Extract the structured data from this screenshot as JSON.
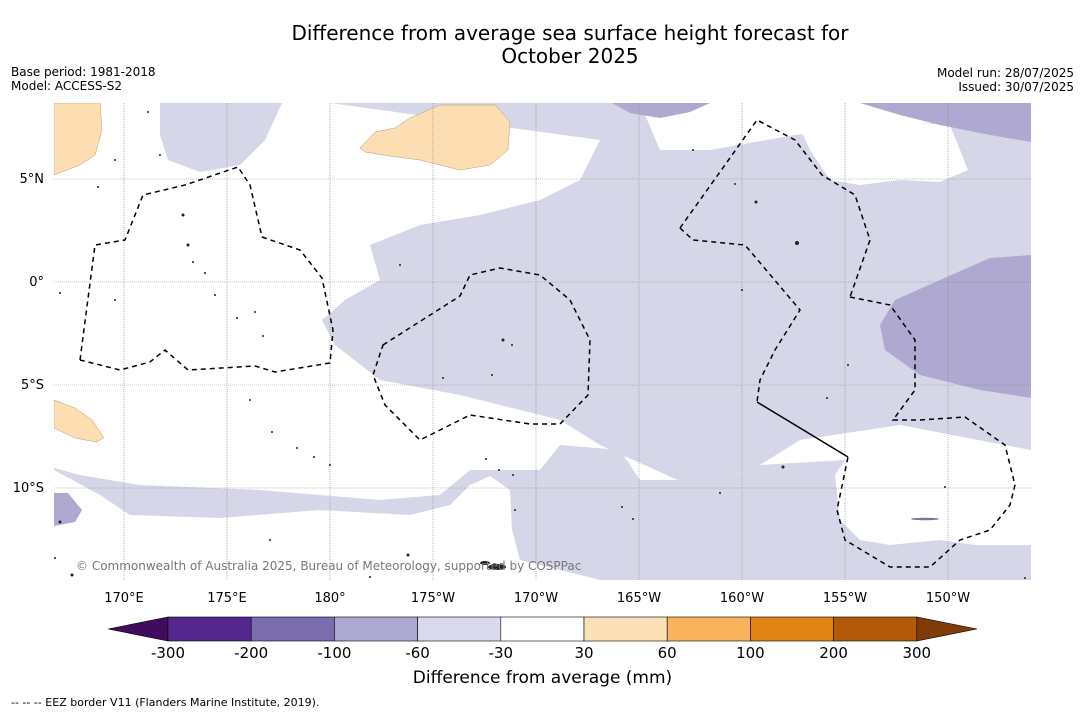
{
  "header": {
    "title_line1": "Difference from average sea surface height forecast for",
    "title_line2": "October 2025",
    "base_period": "Base period: 1981-2018",
    "model": "Model: ACCESS-S2",
    "model_run": "Model run: 28/07/2025",
    "issued": "Issued: 30/07/2025"
  },
  "map": {
    "lat_labels": [
      "5°N",
      "0°",
      "5°S",
      "10°S"
    ],
    "lon_labels": [
      "170°E",
      "175°E",
      "180°",
      "175°W",
      "170°W",
      "165°W",
      "160°W",
      "155°W",
      "150°W"
    ],
    "copyright": "© Commonwealth of Australia 2025, Bureau of Meteorology, supported by COSPPac",
    "colors": {
      "ocean_white": "#ffffff",
      "light_purple": "#d6d6e9",
      "mid_purple": "#afa9d1",
      "light_orange": "#fddeb3",
      "eez_border": "#000000",
      "gridline": "#888888"
    }
  },
  "colorbar": {
    "ticks": [
      "-300",
      "-200",
      "-100",
      "-60",
      "-30",
      "30",
      "60",
      "100",
      "200",
      "300"
    ],
    "colors": [
      "#3f0c5e",
      "#54278f",
      "#7b6dad",
      "#aca8d0",
      "#d9d9ec",
      "#ffffff",
      "#fde0b5",
      "#f8b35c",
      "#e08214",
      "#b35a09",
      "#7f3b08"
    ],
    "label": "Difference from average (mm)"
  },
  "footnote": "--  --  -- EEZ border V11 (Flanders Marine Institute, 2019)."
}
